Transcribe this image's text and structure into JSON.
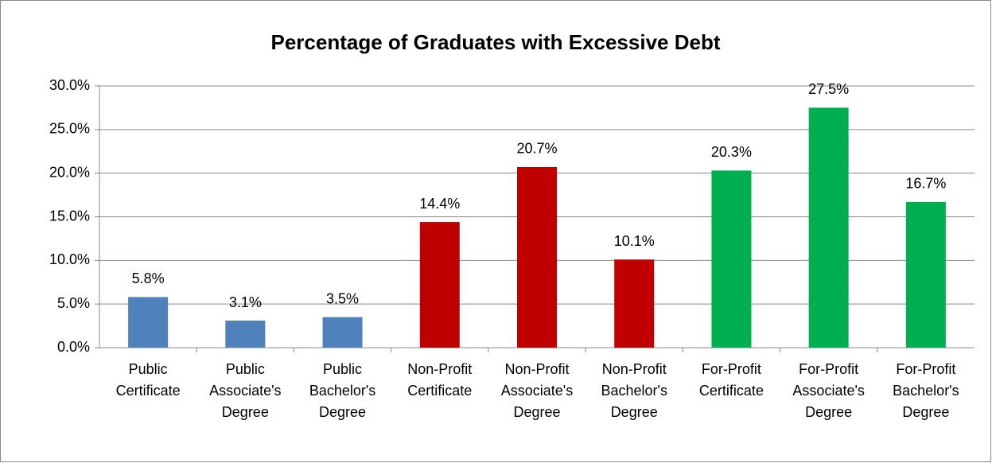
{
  "chart_data": {
    "type": "bar",
    "title": "Percentage of Graduates with Excessive Debt",
    "categories": [
      "Public Certificate",
      "Public Associate's Degree",
      "Public Bachelor's Degree",
      "Non-Profit Certificate",
      "Non-Profit Associate's Degree",
      "Non-Profit Bachelor's Degree",
      "For-Profit Certificate",
      "For-Profit Associate's Degree",
      "For-Profit Bachelor's Degree"
    ],
    "values": [
      5.8,
      3.1,
      3.5,
      14.4,
      20.7,
      10.1,
      20.3,
      27.5,
      16.7
    ],
    "value_labels": [
      "5.8%",
      "3.1%",
      "3.5%",
      "14.4%",
      "20.7%",
      "10.1%",
      "20.3%",
      "27.5%",
      "16.7%"
    ],
    "colors": [
      "#4f81bd",
      "#4f81bd",
      "#4f81bd",
      "#c00000",
      "#c00000",
      "#c00000",
      "#00b050",
      "#00b050",
      "#00b050"
    ],
    "ylim": [
      0,
      30
    ],
    "yticks": [
      {
        "value": 0,
        "label": "0.0%"
      },
      {
        "value": 5,
        "label": "5.0%"
      },
      {
        "value": 10,
        "label": "10.0%"
      },
      {
        "value": 15,
        "label": "15.0%"
      },
      {
        "value": 20,
        "label": "20.0%"
      },
      {
        "value": 25,
        "label": "25.0%"
      },
      {
        "value": 30,
        "label": "30.0%"
      }
    ],
    "grid": true
  }
}
